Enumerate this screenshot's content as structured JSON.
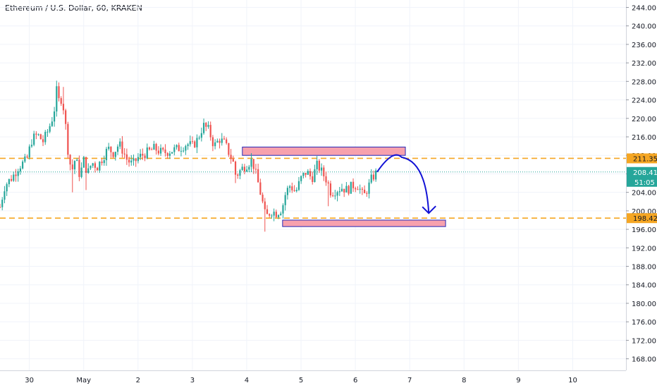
{
  "title": "Ethereum / U.S. Dollar, 60, KRAKEN",
  "colors": {
    "up": "#26a69a",
    "down": "#ef5350",
    "level_line": "#f5a623",
    "zone_fill": "#f7a1ad",
    "zone_border": "#2528b8",
    "arrow": "#1212d6",
    "price_line": "#26a69a",
    "grid": "#f0f3fa",
    "axis_text": "#131722"
  },
  "chart_data": {
    "type": "candlestick",
    "y_range": [
      165.5,
      245.6
    ],
    "y_ticks": [
      168,
      172,
      176,
      180,
      184,
      188,
      192,
      196,
      200,
      204,
      208,
      212,
      216,
      220,
      224,
      228,
      232,
      236,
      240,
      244
    ],
    "x_range_days": [
      -1.54,
      9.98
    ],
    "x_ticks": [
      {
        "label": "30",
        "day": -1
      },
      {
        "label": "May",
        "day": 0
      },
      {
        "label": "2",
        "day": 1
      },
      {
        "label": "3",
        "day": 2
      },
      {
        "label": "4",
        "day": 3
      },
      {
        "label": "5",
        "day": 4
      },
      {
        "label": "6",
        "day": 5
      },
      {
        "label": "7",
        "day": 6
      },
      {
        "label": "8",
        "day": 7
      },
      {
        "label": "9",
        "day": 8
      },
      {
        "label": "10",
        "day": 9
      }
    ],
    "price_path": [
      [
        -1.54,
        200.8
      ],
      [
        -1.45,
        205.5
      ],
      [
        -1.3,
        207.5
      ],
      [
        -1.2,
        209.5
      ],
      [
        -1.05,
        211.0
      ],
      [
        -0.95,
        215.5
      ],
      [
        -0.85,
        216.5
      ],
      [
        -0.75,
        215.0
      ],
      [
        -0.65,
        217.5
      ],
      [
        -0.55,
        221.0
      ],
      [
        -0.5,
        226.0
      ],
      [
        -0.45,
        223.5
      ],
      [
        -0.4,
        224.5
      ],
      [
        -0.35,
        220.5
      ],
      [
        -0.28,
        212.0
      ],
      [
        -0.22,
        208.5
      ],
      [
        -0.15,
        211.5
      ],
      [
        -0.07,
        207.5
      ],
      [
        0.0,
        211.0
      ],
      [
        0.07,
        208.0
      ],
      [
        0.15,
        210.5
      ],
      [
        0.25,
        209.5
      ],
      [
        0.35,
        211.5
      ],
      [
        0.45,
        213.5
      ],
      [
        0.55,
        212.5
      ],
      [
        0.65,
        214.5
      ],
      [
        0.72,
        213.0
      ],
      [
        0.8,
        211.0
      ],
      [
        0.9,
        210.0
      ],
      [
        1.0,
        211.5
      ],
      [
        1.15,
        212.5
      ],
      [
        1.3,
        213.5
      ],
      [
        1.45,
        212.5
      ],
      [
        1.6,
        213.0
      ],
      [
        1.75,
        213.5
      ],
      [
        1.9,
        214.5
      ],
      [
        2.0,
        214.0
      ],
      [
        2.1,
        215.5
      ],
      [
        2.2,
        218.5
      ],
      [
        2.3,
        217.5
      ],
      [
        2.4,
        214.0
      ],
      [
        2.5,
        215.5
      ],
      [
        2.6,
        214.5
      ],
      [
        2.75,
        210.5
      ],
      [
        2.8,
        207.5
      ],
      [
        2.9,
        209.0
      ],
      [
        3.0,
        210.0
      ],
      [
        3.1,
        211.0
      ],
      [
        3.2,
        206.5
      ],
      [
        3.28,
        202.5
      ],
      [
        3.35,
        198.5
      ],
      [
        3.45,
        200.0
      ],
      [
        3.55,
        199.5
      ],
      [
        3.65,
        200.5
      ],
      [
        3.72,
        204.0
      ],
      [
        3.8,
        205.5
      ],
      [
        3.9,
        204.0
      ],
      [
        4.0,
        207.0
      ],
      [
        4.1,
        208.5
      ],
      [
        4.2,
        207.0
      ],
      [
        4.3,
        210.0
      ],
      [
        4.4,
        208.0
      ],
      [
        4.48,
        206.5
      ],
      [
        4.55,
        204.0
      ],
      [
        4.65,
        204.5
      ],
      [
        4.75,
        205.0
      ],
      [
        4.85,
        204.5
      ],
      [
        4.95,
        205.5
      ],
      [
        5.05,
        205.5
      ],
      [
        5.15,
        203.0
      ],
      [
        5.25,
        205.5
      ],
      [
        5.3,
        207.0
      ],
      [
        5.4,
        208.41
      ]
    ],
    "current_price": 208.41,
    "current_price_label": "208.41",
    "countdown_label": "51:05",
    "levels": [
      {
        "value": 211.35,
        "label": "211.35"
      },
      {
        "value": 198.42,
        "label": "198.42"
      }
    ],
    "zones": [
      {
        "day_start": 2.92,
        "day_end": 5.92,
        "low": 212.0,
        "high": 213.8
      },
      {
        "day_start": 3.66,
        "day_end": 6.66,
        "low": 196.6,
        "high": 198.0
      }
    ],
    "projection_arrow": {
      "from": [
        5.4,
        208.41
      ],
      "peak": [
        5.85,
        211.6
      ],
      "to": [
        6.35,
        199.5
      ]
    }
  }
}
